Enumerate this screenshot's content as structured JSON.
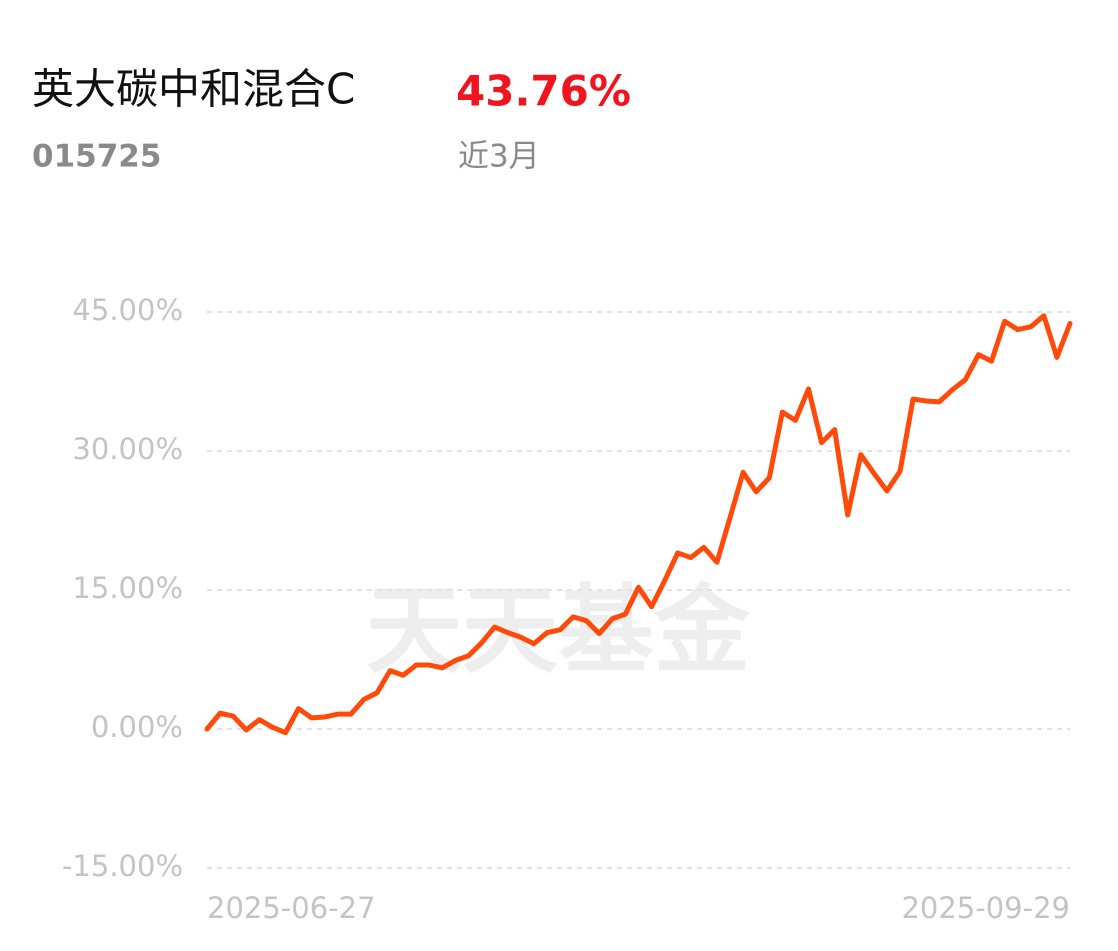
{
  "header": {
    "title": "英大碳中和混合C",
    "code": "015725",
    "return": "43.76%",
    "period": "近3月"
  },
  "chart_data": {
    "type": "line",
    "watermark": "天天基金",
    "categories": [
      "2025-06-27",
      null,
      null,
      null,
      null,
      null,
      null,
      null,
      null,
      null,
      null,
      null,
      null,
      null,
      null,
      null,
      null,
      null,
      null,
      null,
      null,
      null,
      null,
      null,
      null,
      null,
      null,
      null,
      null,
      null,
      null,
      null,
      null,
      null,
      null,
      null,
      null,
      null,
      null,
      null,
      null,
      null,
      null,
      null,
      null,
      null,
      null,
      null,
      null,
      null,
      null,
      null,
      null,
      null,
      null,
      null,
      null,
      null,
      null,
      null,
      null,
      null,
      null,
      null,
      null,
      null,
      "2025-09-29"
    ],
    "values": [
      0,
      1.7,
      1.4,
      -0.1,
      1.0,
      0.2,
      -0.4,
      2.2,
      1.2,
      1.3,
      1.6,
      1.6,
      3.2,
      3.9,
      6.3,
      5.8,
      6.9,
      6.9,
      6.6,
      7.4,
      7.9,
      9.3,
      11.0,
      10.4,
      9.9,
      9.2,
      10.4,
      10.7,
      12.1,
      11.7,
      10.3,
      11.9,
      12.4,
      15.3,
      13.2,
      16.0,
      19.0,
      18.5,
      19.6,
      18.0,
      22.8,
      27.7,
      25.6,
      27.1,
      34.2,
      33.3,
      36.7,
      30.9,
      32.3,
      23.1,
      29.6,
      27.6,
      25.7,
      27.8,
      35.6,
      35.4,
      35.3,
      36.6,
      37.7,
      40.4,
      39.7,
      44.0,
      43.1,
      43.4,
      44.6,
      40.1,
      43.76
    ],
    "color": "#ff4a0a",
    "ylim": [
      -15,
      45
    ],
    "yticks": [
      {
        "value": -15,
        "label": "-15.00%"
      },
      {
        "value": 0,
        "label": "0.00%"
      },
      {
        "value": 15,
        "label": "15.00%"
      },
      {
        "value": 30,
        "label": "30.00%"
      },
      {
        "value": 45,
        "label": "45.00%"
      }
    ],
    "grid": true
  }
}
